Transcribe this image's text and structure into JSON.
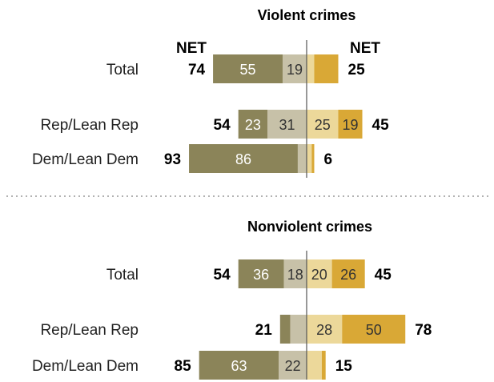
{
  "chart_data": {
    "type": "bar",
    "net_header_left": "NET",
    "net_header_right": "NET",
    "series": [
      {
        "name": "",
        "color": "#8b8459"
      },
      {
        "name": "",
        "color": "#c7c1a8"
      },
      {
        "name": "",
        "color": "#ecd89a"
      },
      {
        "name": "",
        "color": "#d9a836"
      }
    ],
    "panels": [
      {
        "title": "Violent crimes",
        "rows": [
          {
            "category": "Total",
            "net_left": "74",
            "net_right": "25",
            "values": [
              55,
              19,
              6,
              19
            ],
            "labels": [
              "55",
              "19",
              "",
              ""
            ]
          },
          {
            "category": "Rep/Lean Rep",
            "net_left": "54",
            "net_right": "45",
            "values": [
              23,
              31,
              25,
              19
            ],
            "labels": [
              "23",
              "31",
              "25",
              "19"
            ]
          },
          {
            "category": "Dem/Lean Dem",
            "net_left": "93",
            "net_right": "6",
            "values": [
              86,
              7,
              4,
              2
            ],
            "labels": [
              "86",
              "",
              "",
              ""
            ]
          }
        ]
      },
      {
        "title": "Nonviolent crimes",
        "rows": [
          {
            "category": "Total",
            "net_left": "54",
            "net_right": "45",
            "values": [
              36,
              18,
              20,
              26
            ],
            "labels": [
              "36",
              "18",
              "20",
              "26"
            ]
          },
          {
            "category": "Rep/Lean Rep",
            "net_left": "21",
            "net_right": "78",
            "values": [
              8,
              13,
              28,
              50
            ],
            "labels": [
              "",
              "",
              "28",
              "50"
            ]
          },
          {
            "category": "Dem/Lean Dem",
            "net_left": "85",
            "net_right": "15",
            "values": [
              63,
              22,
              12,
              3
            ],
            "labels": [
              "63",
              "22",
              "",
              ""
            ]
          }
        ]
      }
    ]
  }
}
